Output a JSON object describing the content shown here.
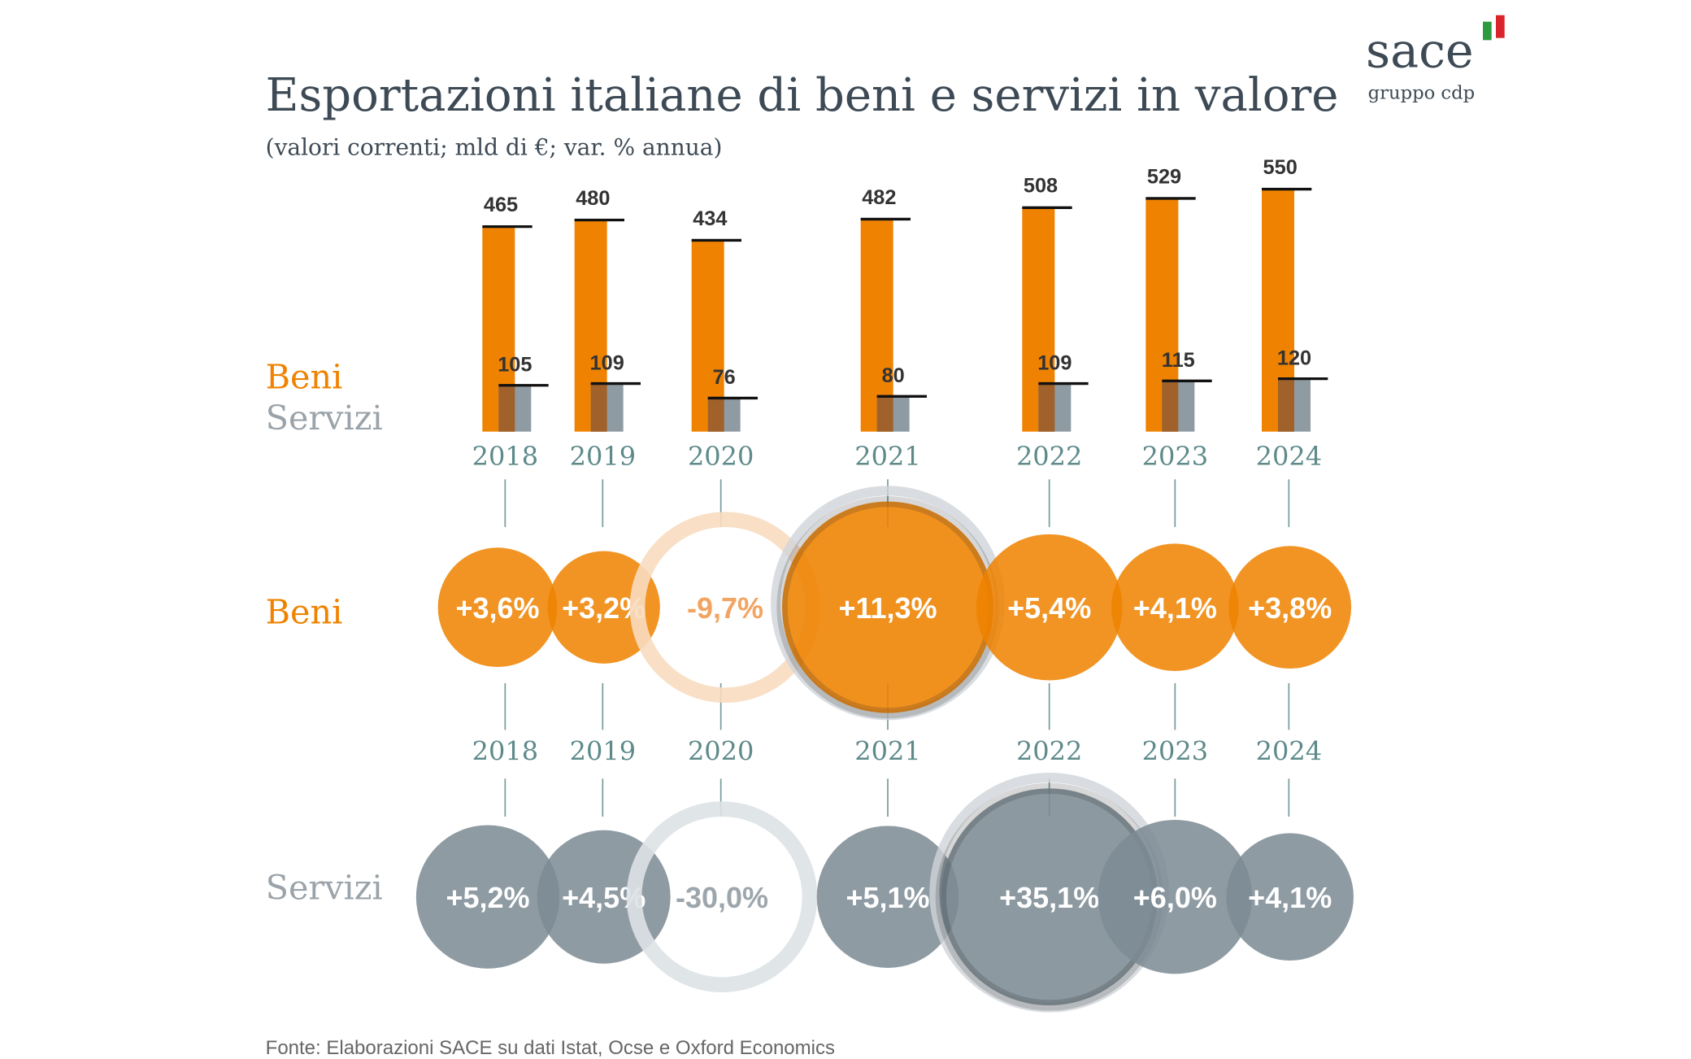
{
  "header": {
    "title": "Esportazioni italiane di beni e servizi in valore",
    "subtitle": "(valori correnti; mld di €; var. % annua)"
  },
  "logo": {
    "name": "sace",
    "tagline": "gruppo cdp",
    "flag_colors": [
      "#2e9a3e",
      "#d9242b"
    ]
  },
  "labels": {
    "beni": "Beni",
    "servizi": "Servizi"
  },
  "source": "Fonte: Elaborazioni SACE su dati Istat, Ocse e Oxford Economics",
  "colors": {
    "beni": "#ef8200",
    "servizi": "#8f9ba3",
    "overlap": "#a0622a",
    "year_text": "#5e8a8a",
    "title": "#3d4a55",
    "negative_beni_ring": "#f8dcc0",
    "negative_servizi_ring": "#dde2e5"
  },
  "chart_data": [
    {
      "type": "bar",
      "categories": [
        "2018",
        "2019",
        "2020",
        "2021",
        "2022",
        "2023",
        "2024"
      ],
      "series": [
        {
          "name": "Beni",
          "values": [
            465,
            480,
            434,
            482,
            508,
            529,
            550
          ]
        },
        {
          "name": "Servizi",
          "values": [
            105,
            109,
            76,
            80,
            109,
            115,
            120
          ]
        }
      ],
      "data_labels": [
        "465",
        "480",
        "434",
        "482",
        "508",
        "529",
        "550",
        "105",
        "109",
        "76",
        "80",
        "109",
        "115",
        "120"
      ],
      "unit": "mld di €",
      "grid": false
    },
    {
      "type": "bubble",
      "name": "Beni",
      "categories": [
        "2018",
        "2019",
        "2020",
        "2021",
        "2022",
        "2023",
        "2024"
      ],
      "values": [
        3.6,
        3.2,
        -9.7,
        11.3,
        5.4,
        4.1,
        3.8
      ],
      "value_labels": [
        "+3,6%",
        "+3,2%",
        "-9,7%",
        "+11,3%",
        "+5,4%",
        "+4,1%",
        "+3,8%"
      ]
    },
    {
      "type": "bubble",
      "name": "Servizi",
      "categories": [
        "2018",
        "2019",
        "2020",
        "2021",
        "2022",
        "2023",
        "2024"
      ],
      "values": [
        5.2,
        4.5,
        -30.0,
        5.1,
        35.1,
        6.0,
        4.1
      ],
      "value_labels": [
        "+5,2%",
        "+4,5%",
        "-30,0%",
        "+5,1%",
        "+35,1%",
        "+6,0%",
        "+4,1%"
      ]
    }
  ]
}
